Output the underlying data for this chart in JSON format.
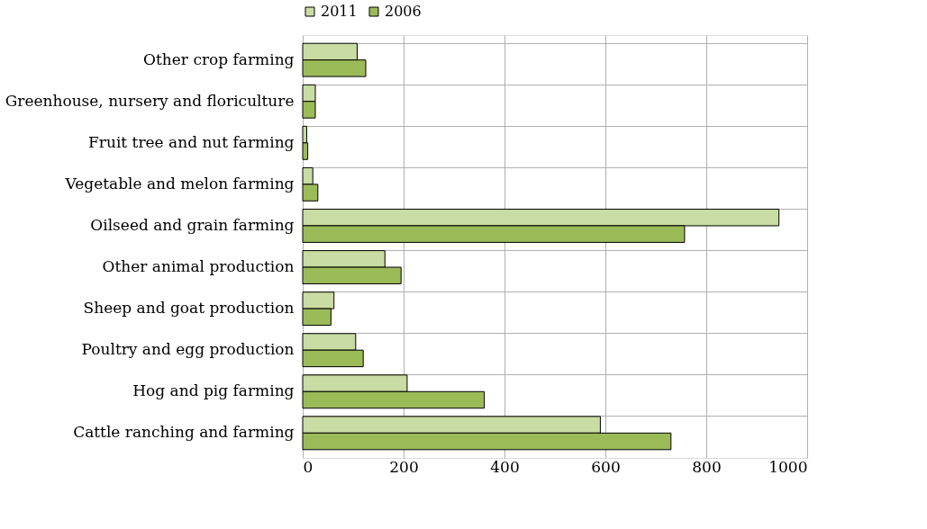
{
  "chart_data": {
    "type": "bar",
    "orientation": "horizontal",
    "categories": [
      "Other crop farming",
      "Greenhouse, nursery and floriculture",
      "Fruit tree and nut farming",
      "Vegetable and melon farming",
      "Oilseed and grain farming",
      "Other animal production",
      "Sheep and goat production",
      "Poultry and egg production",
      "Hog and pig farming",
      "Cattle ranching and farming"
    ],
    "series": [
      {
        "name": "2011",
        "color": "#c9dca3",
        "values": [
          108,
          25,
          8,
          20,
          944,
          163,
          62,
          105,
          207,
          590
        ]
      },
      {
        "name": "2006",
        "color": "#9bbb59",
        "values": [
          125,
          25,
          10,
          30,
          757,
          195,
          56,
          120,
          360,
          730
        ]
      }
    ],
    "xlim": [
      0,
      1000
    ],
    "xticks": [
      0,
      200,
      400,
      600,
      800,
      1000
    ],
    "grid": true,
    "legend": "top"
  }
}
